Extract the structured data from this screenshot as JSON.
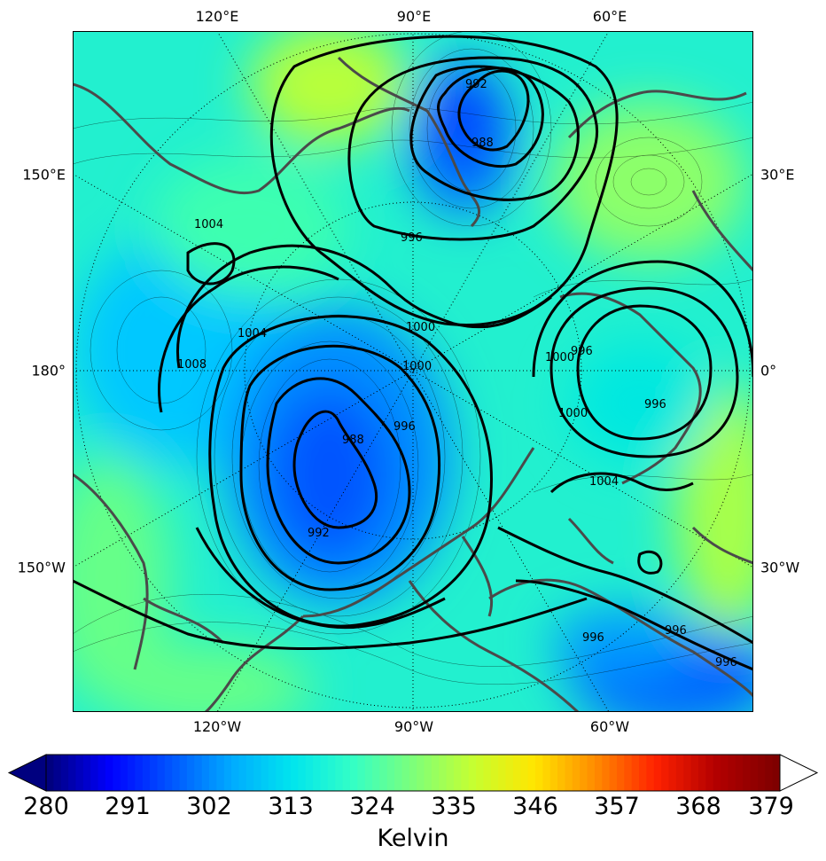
{
  "map": {
    "lon_labels_top": [
      "120°E",
      "90°E",
      "60°E"
    ],
    "lon_labels_bottom": [
      "120°W",
      "90°W",
      "60°W"
    ],
    "lat_labels_left": [
      "150°E",
      "180°",
      "150°W"
    ],
    "lat_labels_right": [
      "30°E",
      "0°",
      "30°W"
    ],
    "contour_labels": [
      "992",
      "988",
      "996",
      "1004",
      "1000",
      "1008",
      "1004",
      "1000",
      "996",
      "988",
      "992",
      "1000",
      "996",
      "996",
      "1000",
      "1004",
      "996",
      "996",
      "996"
    ]
  },
  "colorbar": {
    "ticks": [
      "280",
      "291",
      "302",
      "313",
      "324",
      "335",
      "346",
      "357",
      "368",
      "379"
    ],
    "label": "Kelvin",
    "range": [
      280,
      379
    ],
    "extend": "both"
  },
  "colors": {
    "coast": "#4a4a4a",
    "contour": "#000000",
    "gradient": [
      "#00007f",
      "#0000ff",
      "#0055ff",
      "#00aaff",
      "#00e5ee",
      "#33ffc6",
      "#7dff7a",
      "#c6ff30",
      "#ffe600",
      "#ff8c00",
      "#ff2200",
      "#b30000",
      "#7f0000"
    ]
  }
}
